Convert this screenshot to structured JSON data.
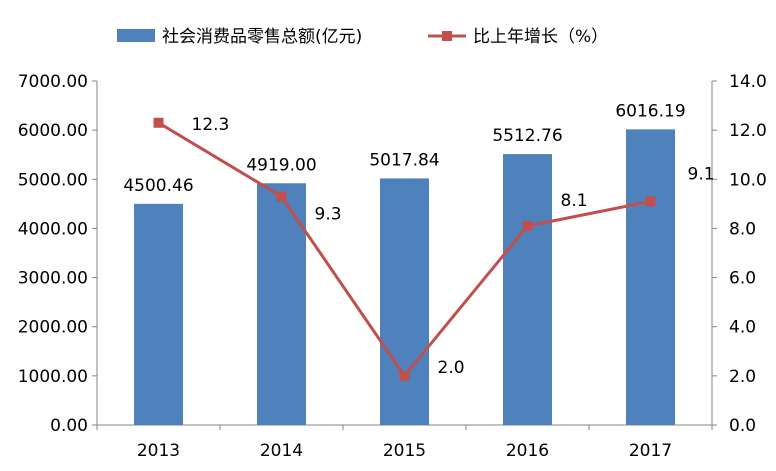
{
  "chart_data": {
    "type": "bar",
    "categories": [
      "2013",
      "2014",
      "2015",
      "2016",
      "2017"
    ],
    "series": [
      {
        "name": "社会消费品零售总额(亿元)",
        "chart": "bar",
        "axis": "left",
        "values": [
          4500.46,
          4919.0,
          5017.84,
          5512.76,
          6016.19
        ],
        "labels": [
          "4500.46",
          "4919.00",
          "5017.84",
          "5512.76",
          "6016.19"
        ],
        "color": "#4f81bd"
      },
      {
        "name": "比上年增长（%）",
        "chart": "line",
        "axis": "right",
        "values": [
          12.3,
          9.3,
          2.0,
          8.1,
          9.1
        ],
        "labels": [
          "12.3",
          "9.3",
          "2.0",
          "8.1",
          "9.1"
        ],
        "color": "#c0504d"
      }
    ],
    "y_left": {
      "ylim": [
        0,
        7000
      ],
      "ticks": [
        "0.00",
        "1000.00",
        "2000.00",
        "3000.00",
        "4000.00",
        "5000.00",
        "6000.00",
        "7000.00"
      ]
    },
    "y_right": {
      "ylim": [
        0,
        14
      ],
      "ticks": [
        "0.0",
        "2.0",
        "4.0",
        "6.0",
        "8.0",
        "10.0",
        "12.0",
        "14.0"
      ]
    },
    "title": "",
    "xlabel": "",
    "ylabel": "",
    "grid": false,
    "legend_position": "top"
  }
}
